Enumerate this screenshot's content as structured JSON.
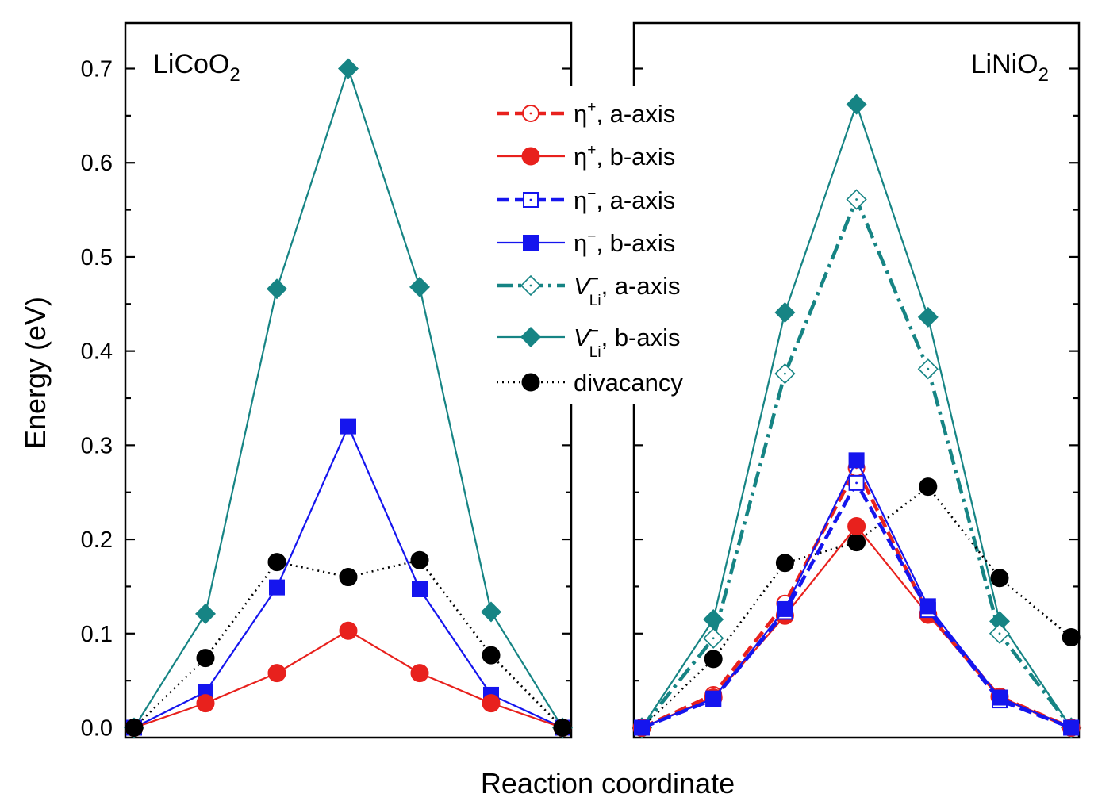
{
  "chart_data": {
    "type": "line",
    "xlabel": "Reaction coordinate",
    "ylabel": "Energy (eV)",
    "ylim": [
      0,
      0.75
    ],
    "yticks": [
      "0.0",
      "0.1",
      "0.2",
      "0.3",
      "0.4",
      "0.5",
      "0.6",
      "0.7"
    ],
    "x": [
      0,
      1,
      2,
      3,
      4,
      5,
      6
    ],
    "legend": {
      "placement": "top-center",
      "entries": [
        {
          "key": "eta_plus_a",
          "sym": "η",
          "sup": "+",
          "sub": "",
          "italic": false,
          "suffix": ", a-axis"
        },
        {
          "key": "eta_plus_b",
          "sym": "η",
          "sup": "+",
          "sub": "",
          "italic": false,
          "suffix": ", b-axis"
        },
        {
          "key": "eta_minus_a",
          "sym": "η",
          "sup": "−",
          "sub": "",
          "italic": false,
          "suffix": ", a-axis"
        },
        {
          "key": "eta_minus_b",
          "sym": "η",
          "sup": "−",
          "sub": "",
          "italic": false,
          "suffix": ", b-axis"
        },
        {
          "key": "vli_a",
          "sym": "V",
          "sup": "−",
          "sub": "Li",
          "italic": true,
          "suffix": ", a-axis"
        },
        {
          "key": "vli_b",
          "sym": "V",
          "sup": "−",
          "sub": "Li",
          "italic": true,
          "suffix": ", b-axis"
        },
        {
          "key": "divacancy",
          "sym": "",
          "sup": "",
          "sub": "",
          "italic": false,
          "suffix": "divacancy"
        }
      ]
    },
    "styles": {
      "eta_plus_a": {
        "color": "#e8211d",
        "marker": "circle-open",
        "dash": "16,7",
        "width": 4.5
      },
      "eta_plus_b": {
        "color": "#e8211d",
        "marker": "circle",
        "dash": "",
        "width": 2.2
      },
      "eta_minus_a": {
        "color": "#1515ee",
        "marker": "square-open",
        "dash": "16,7",
        "width": 4.5
      },
      "eta_minus_b": {
        "color": "#1515ee",
        "marker": "square",
        "dash": "",
        "width": 2.2
      },
      "vli_a": {
        "color": "#168484",
        "marker": "diamond-open",
        "dash": "20,7,4,7",
        "width": 4.5
      },
      "vli_b": {
        "color": "#168484",
        "marker": "diamond",
        "dash": "",
        "width": 2.2
      },
      "divacancy": {
        "color": "#000000",
        "marker": "circle",
        "dash": "2,5",
        "width": 2.6
      }
    },
    "panels": [
      {
        "title_main": "LiCoO",
        "title_sub": "2",
        "series": [
          {
            "key": "vli_b",
            "values": [
              0.0,
              0.121,
              0.466,
              0.7,
              0.468,
              0.123,
              0.0
            ]
          },
          {
            "key": "eta_minus_b",
            "values": [
              0.0,
              0.038,
              0.149,
              0.32,
              0.147,
              0.035,
              0.0
            ]
          },
          {
            "key": "eta_plus_b",
            "values": [
              0.0,
              0.026,
              0.058,
              0.103,
              0.058,
              0.026,
              0.0
            ]
          },
          {
            "key": "divacancy",
            "values": [
              0.0,
              0.074,
              0.176,
              0.16,
              0.178,
              0.077,
              0.0
            ]
          }
        ]
      },
      {
        "title_main": "LiNiO",
        "title_sub": "2",
        "series": [
          {
            "key": "vli_b",
            "values": [
              0.0,
              0.115,
              0.441,
              0.662,
              0.436,
              0.113,
              0.0
            ]
          },
          {
            "key": "vli_a",
            "values": [
              0.0,
              0.095,
              0.376,
              0.561,
              0.381,
              0.1,
              0.0
            ]
          },
          {
            "key": "divacancy",
            "values": [
              0.0,
              0.073,
              0.175,
              0.197,
              0.256,
              0.159,
              0.096
            ]
          },
          {
            "key": "eta_plus_a",
            "values": [
              0.0,
              0.035,
              0.132,
              0.276,
              0.121,
              0.033,
              0.0
            ]
          },
          {
            "key": "eta_plus_b",
            "values": [
              0.0,
              0.032,
              0.119,
              0.214,
              0.12,
              0.033,
              0.0
            ]
          },
          {
            "key": "eta_minus_a",
            "values": [
              0.0,
              0.03,
              0.123,
              0.26,
              0.125,
              0.029,
              0.0
            ]
          },
          {
            "key": "eta_minus_b",
            "values": [
              0.0,
              0.031,
              0.126,
              0.284,
              0.129,
              0.032,
              0.0
            ]
          }
        ]
      }
    ]
  }
}
